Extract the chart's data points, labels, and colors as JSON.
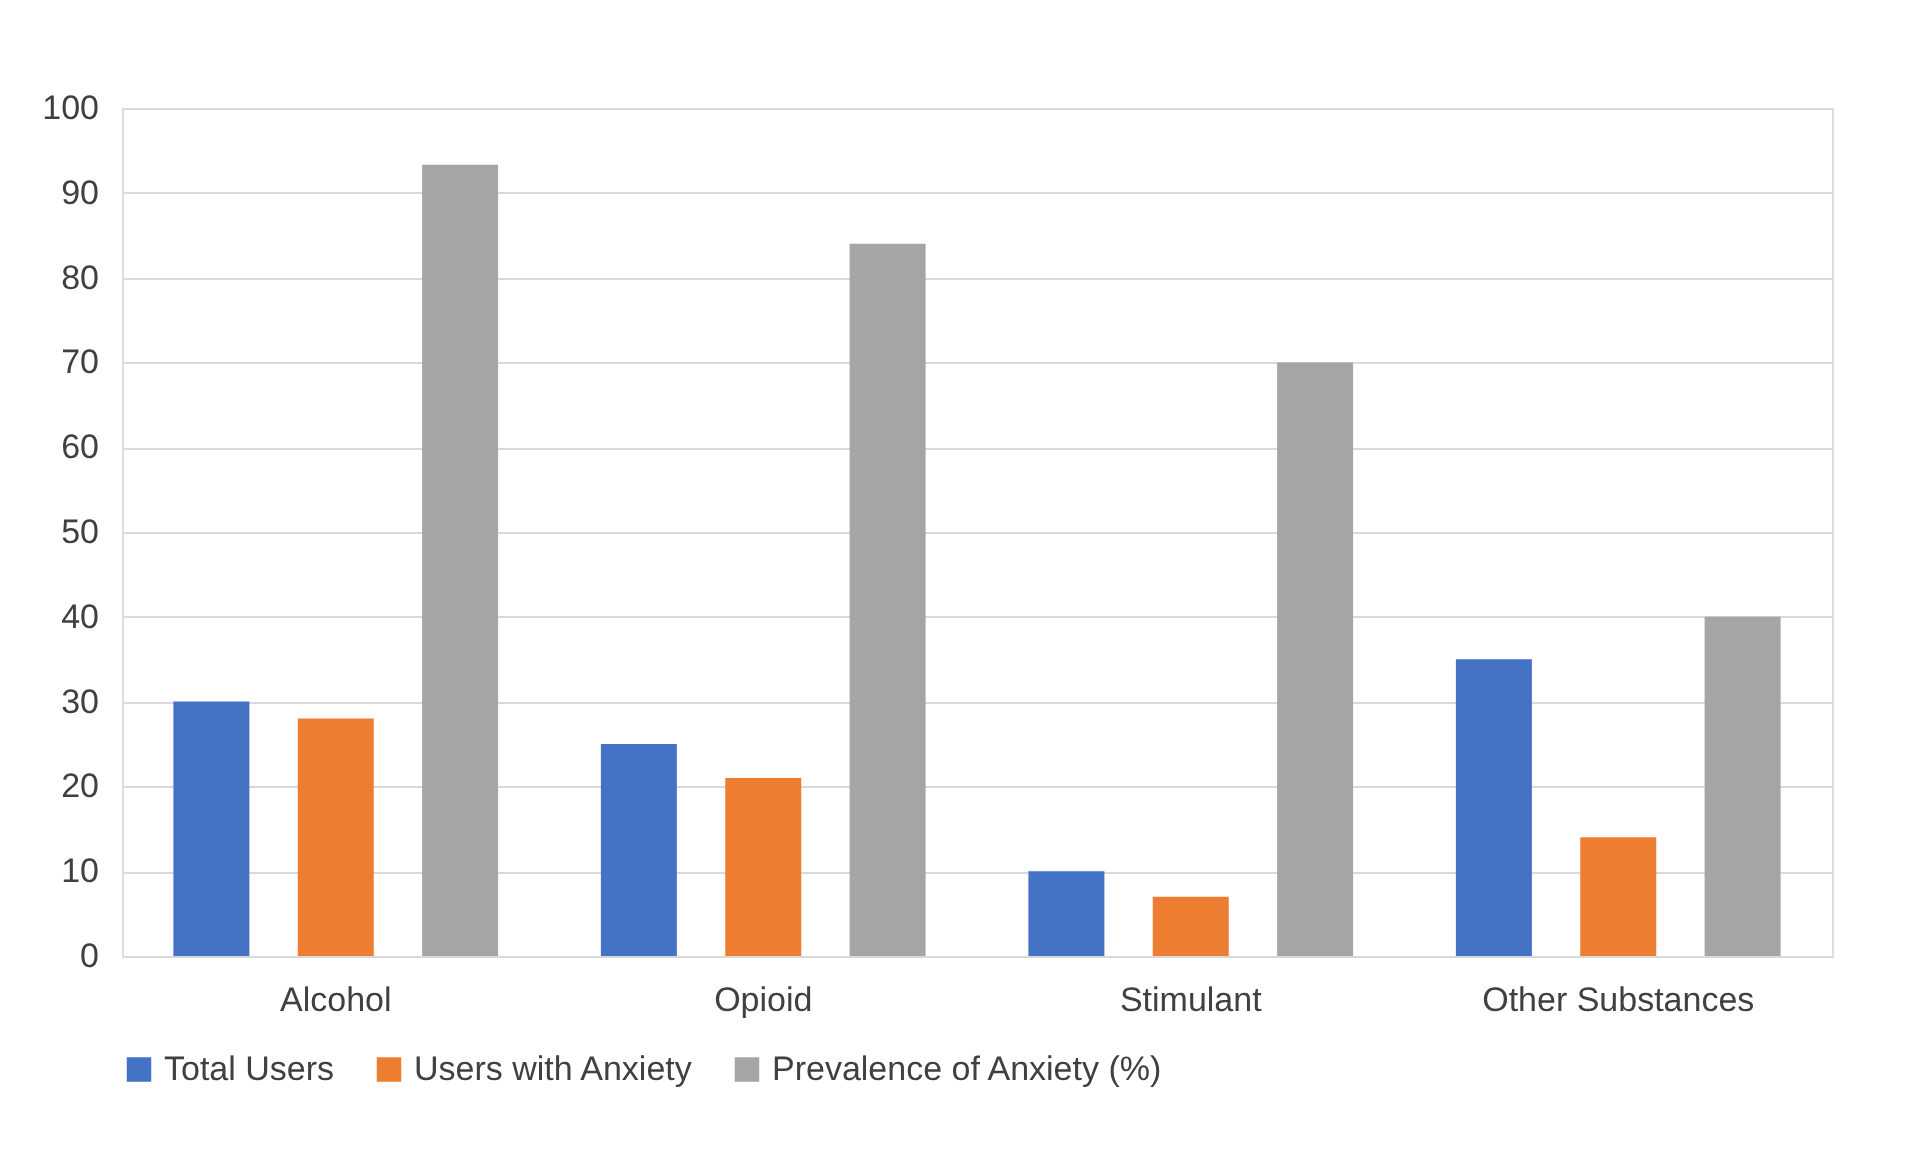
{
  "chart_data": {
    "type": "bar",
    "categories": [
      "Alcohol",
      "Opioid",
      "Stimulant",
      "Other Substances"
    ],
    "series": [
      {
        "name": "Total Users",
        "color": "#4472c4",
        "values": [
          30,
          25,
          10,
          35
        ]
      },
      {
        "name": "Users with Anxiety",
        "color": "#ed7d31",
        "values": [
          28,
          21,
          7,
          14
        ]
      },
      {
        "name": "Prevalence of Anxiety (%)",
        "color": "#a5a5a5",
        "values": [
          93.3,
          84,
          70,
          40
        ]
      }
    ],
    "ylim": [
      0,
      100
    ],
    "yticks": [
      0,
      10,
      20,
      30,
      40,
      50,
      60,
      70,
      80,
      90,
      100
    ],
    "grid": "y",
    "legend": "bottom"
  }
}
